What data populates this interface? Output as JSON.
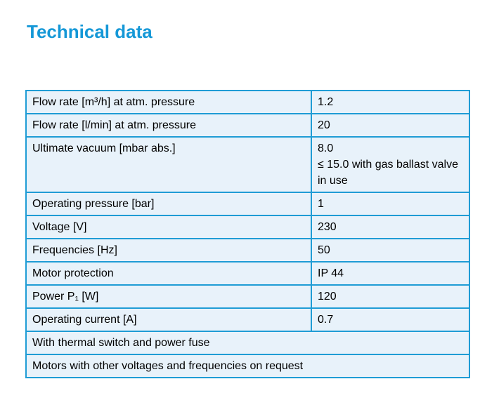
{
  "page": {
    "title": "Technical data"
  },
  "colors": {
    "title_text": "#1598d7",
    "table_border": "#1f9cd5",
    "cell_background": "#e8f2fa",
    "body_text": "#000000",
    "page_background": "#ffffff"
  },
  "table": {
    "rows": [
      {
        "label": "Flow rate [m³/h] at atm. pressure",
        "value": "1.2"
      },
      {
        "label": "Flow rate [l/min] at atm. pressure",
        "value": "20"
      },
      {
        "label": "Ultimate vacuum [mbar abs.]",
        "value": "8.0\n≤ 15.0 with gas ballast valve in use"
      },
      {
        "label": "Operating pressure [bar]",
        "value": "1"
      },
      {
        "label": "Voltage [V]",
        "value": "230"
      },
      {
        "label": "Frequencies [Hz]",
        "value": "50"
      },
      {
        "label": "Motor protection",
        "value": "IP 44"
      },
      {
        "label": "Power P₁ [W]",
        "value": "120"
      },
      {
        "label": "Operating current [A]",
        "value": "0.7"
      }
    ],
    "full_rows": [
      {
        "text": "With thermal switch and power fuse"
      },
      {
        "text": "Motors with other voltages and frequencies on request"
      }
    ]
  }
}
